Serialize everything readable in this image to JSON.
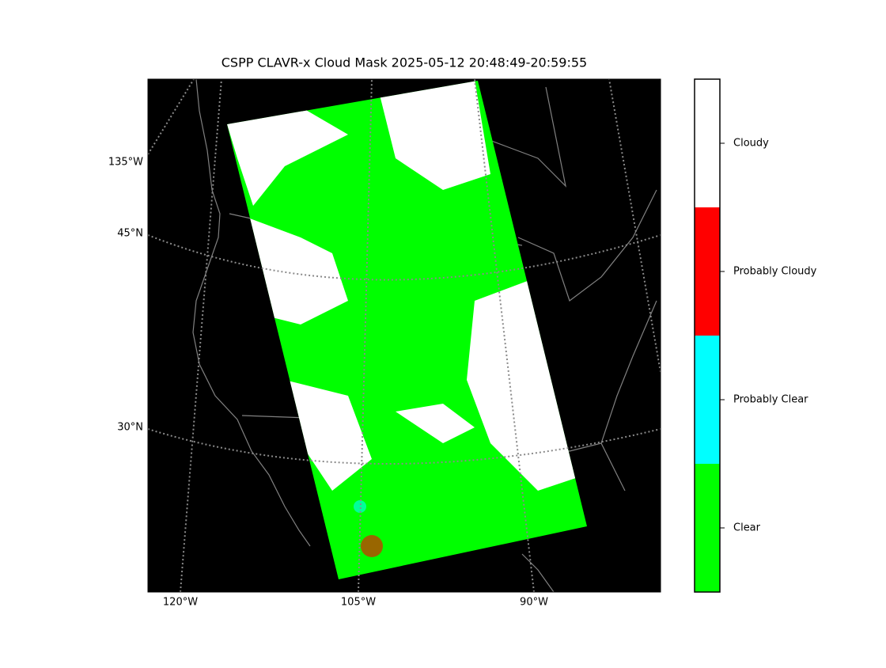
{
  "title": "CSPP CLAVR-x Cloud Mask 2025-05-12 20:48:49-20:59:55",
  "map": {
    "left_labels": [
      "135°W",
      "45°N",
      "30°N"
    ],
    "bottom_labels": [
      "120°W",
      "105°W",
      "90°W"
    ]
  },
  "colorbar": {
    "items": [
      {
        "label": "Clear",
        "color": "#00ff00"
      },
      {
        "label": "Probably Clear",
        "color": "#00ffff"
      },
      {
        "label": "Probably Cloudy",
        "color": "#ff0000"
      },
      {
        "label": "Cloudy",
        "color": "#ffffff"
      }
    ]
  }
}
